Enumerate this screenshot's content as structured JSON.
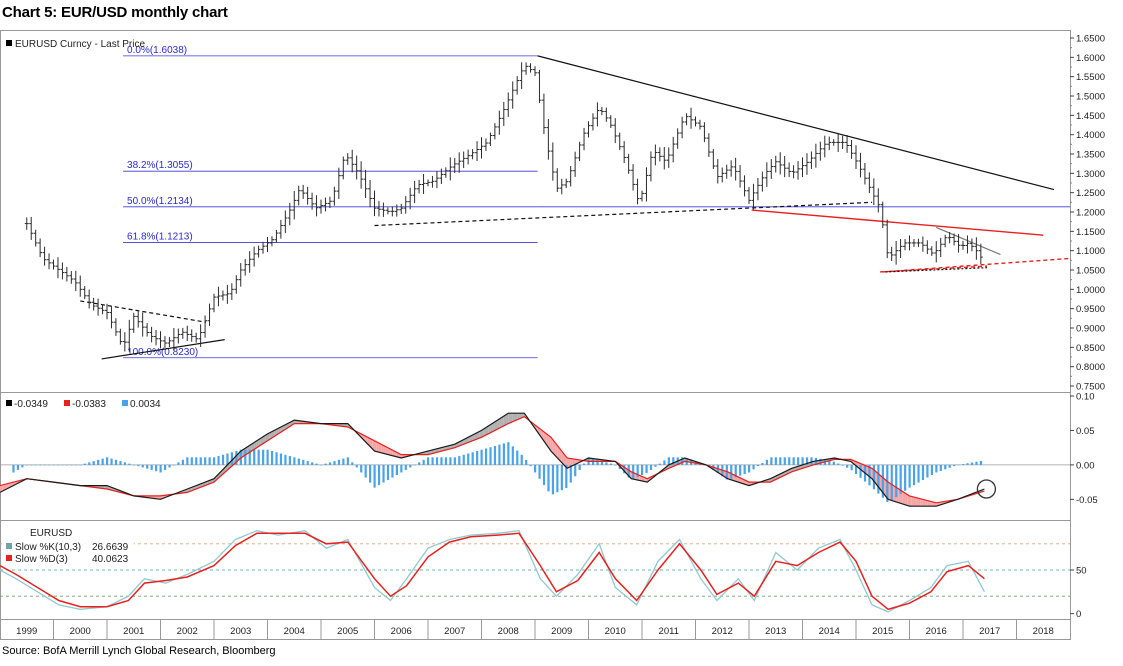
{
  "title": "Chart 5: EUR/USD monthly chart",
  "source": "Source: BofA Merrill Lynch Global Research, Bloomberg",
  "colors": {
    "price": "#2b2b2b",
    "fib": "#3a3ad6",
    "resistance": "#111111",
    "red_trend": "#e8201e",
    "macd_black": "#1a1a1a",
    "macd_red": "#e8201e",
    "macd_fill_pink": "#f4a6a6",
    "macd_fill_gray": "#b0b0b0",
    "histogram": "#4aa3e8",
    "stoch_k": "#8fc9cf",
    "stoch_d": "#e8201e",
    "level_orange": "#e8a070",
    "level_teal": "#6fb8b0",
    "level_green": "#6aa36a"
  },
  "chart_data": [
    {
      "type": "line",
      "panel": "price",
      "legend": "EURUSD Curncy - Last Price",
      "x_unit": "year",
      "xlim": [
        1998.5,
        2018.5
      ],
      "ylim": [
        0.75,
        1.65
      ],
      "y_ticks": [
        "0.7500",
        "0.8000",
        "0.8500",
        "0.9000",
        "0.9500",
        "1.0000",
        "1.0500",
        "1.1000",
        "1.1500",
        "1.2000",
        "1.2500",
        "1.3000",
        "1.3500",
        "1.4000",
        "1.4500",
        "1.5000",
        "1.5500",
        "1.6000",
        "1.6500"
      ],
      "series_points": [
        [
          1999.0,
          1.17
        ],
        [
          1999.3,
          1.08
        ],
        [
          1999.6,
          1.05
        ],
        [
          1999.9,
          1.02
        ],
        [
          2000.2,
          0.96
        ],
        [
          2000.5,
          0.94
        ],
        [
          2000.8,
          0.85
        ],
        [
          2001.0,
          0.93
        ],
        [
          2001.3,
          0.88
        ],
        [
          2001.6,
          0.86
        ],
        [
          2001.9,
          0.89
        ],
        [
          2002.2,
          0.87
        ],
        [
          2002.5,
          0.98
        ],
        [
          2002.8,
          0.99
        ],
        [
          2003.0,
          1.05
        ],
        [
          2003.3,
          1.1
        ],
        [
          2003.6,
          1.13
        ],
        [
          2003.9,
          1.2
        ],
        [
          2004.1,
          1.26
        ],
        [
          2004.4,
          1.21
        ],
        [
          2004.7,
          1.23
        ],
        [
          2004.95,
          1.35
        ],
        [
          2005.2,
          1.3
        ],
        [
          2005.5,
          1.21
        ],
        [
          2005.8,
          1.2
        ],
        [
          2006.0,
          1.21
        ],
        [
          2006.3,
          1.27
        ],
        [
          2006.6,
          1.28
        ],
        [
          2006.95,
          1.32
        ],
        [
          2007.3,
          1.35
        ],
        [
          2007.6,
          1.38
        ],
        [
          2007.9,
          1.46
        ],
        [
          2008.1,
          1.52
        ],
        [
          2008.3,
          1.58
        ],
        [
          2008.5,
          1.56
        ],
        [
          2008.7,
          1.39
        ],
        [
          2008.9,
          1.26
        ],
        [
          2009.1,
          1.28
        ],
        [
          2009.4,
          1.4
        ],
        [
          2009.7,
          1.47
        ],
        [
          2009.9,
          1.43
        ],
        [
          2010.2,
          1.33
        ],
        [
          2010.45,
          1.22
        ],
        [
          2010.7,
          1.36
        ],
        [
          2010.95,
          1.33
        ],
        [
          2011.3,
          1.45
        ],
        [
          2011.6,
          1.42
        ],
        [
          2011.9,
          1.29
        ],
        [
          2012.2,
          1.32
        ],
        [
          2012.5,
          1.23
        ],
        [
          2012.8,
          1.3
        ],
        [
          2013.0,
          1.33
        ],
        [
          2013.3,
          1.3
        ],
        [
          2013.6,
          1.33
        ],
        [
          2013.95,
          1.38
        ],
        [
          2014.3,
          1.38
        ],
        [
          2014.55,
          1.32
        ],
        [
          2014.8,
          1.25
        ],
        [
          2014.95,
          1.21
        ],
        [
          2015.1,
          1.08
        ],
        [
          2015.4,
          1.12
        ],
        [
          2015.7,
          1.12
        ],
        [
          2015.95,
          1.09
        ],
        [
          2016.2,
          1.14
        ],
        [
          2016.45,
          1.11
        ],
        [
          2016.6,
          1.12
        ],
        [
          2016.75,
          1.1
        ],
        [
          2016.9,
          1.07
        ]
      ],
      "annotations": {
        "fibonacci_levels": [
          {
            "label": "0.0%(1.6038)",
            "value": 1.6038
          },
          {
            "label": "38.2%(1.3055)",
            "value": 1.3055
          },
          {
            "label": "50.0%(1.2134)",
            "value": 1.2134
          },
          {
            "label": "61.8%(1.1213)",
            "value": 1.1213
          },
          {
            "label": "100.0%(0.8230)",
            "value": 0.823
          }
        ],
        "fib_x_range": [
          2000.8,
          2008.55
        ],
        "fib_extended_level": {
          "value": 1.2134,
          "x_range": [
            2008.55,
            2018.5
          ]
        },
        "trendlines": [
          {
            "style": "solid",
            "color": "black",
            "from": [
              2008.55,
              1.6038
            ],
            "to": [
              2018.2,
              1.258
            ]
          },
          {
            "style": "dashed",
            "color": "black",
            "from": [
              2005.5,
              1.165
            ],
            "to": [
              2014.8,
              1.225
            ]
          },
          {
            "style": "solid",
            "color": "red",
            "from": [
              2012.55,
              1.205
            ],
            "to": [
              2018.0,
              1.14
            ]
          },
          {
            "style": "dashed",
            "color": "red",
            "from": [
              2015.0,
              1.045
            ],
            "to": [
              2018.5,
              1.08
            ]
          },
          {
            "style": "solid",
            "color": "gray",
            "from": [
              2016.0,
              1.16
            ],
            "to": [
              2017.2,
              1.09
            ]
          },
          {
            "style": "dashed",
            "color": "black",
            "from": [
              2000.0,
              0.97
            ],
            "to": [
              2002.35,
              0.915
            ]
          },
          {
            "style": "solid",
            "color": "black",
            "from": [
              2000.4,
              0.82
            ],
            "to": [
              2002.7,
              0.87
            ]
          },
          {
            "style": "dashed",
            "color": "red",
            "from": [
              2014.95,
              1.045
            ],
            "to": [
              2016.95,
              1.06
            ]
          },
          {
            "style": "dotted",
            "color": "black",
            "from": [
              2015.05,
              1.045
            ],
            "to": [
              2016.95,
              1.056
            ]
          }
        ]
      }
    },
    {
      "type": "line",
      "panel": "macd",
      "legend": [
        {
          "value": "-0.0349",
          "color": "black"
        },
        {
          "value": "-0.0383",
          "color": "red"
        },
        {
          "value": "0.0034",
          "color": "blue"
        }
      ],
      "ylim": [
        -0.08,
        0.1
      ],
      "y_ticks": [
        "-0.05",
        "0.00",
        "0.05",
        "0.10"
      ],
      "macd_points": [
        [
          1998.5,
          -0.04
        ],
        [
          1999.0,
          -0.02
        ],
        [
          1999.5,
          -0.025
        ],
        [
          2000.0,
          -0.03
        ],
        [
          2000.5,
          -0.03
        ],
        [
          2001.0,
          -0.045
        ],
        [
          2001.5,
          -0.05
        ],
        [
          2002.0,
          -0.035
        ],
        [
          2002.5,
          -0.02
        ],
        [
          2003.0,
          0.02
        ],
        [
          2003.5,
          0.045
        ],
        [
          2004.0,
          0.065
        ],
        [
          2004.5,
          0.06
        ],
        [
          2005.0,
          0.06
        ],
        [
          2005.5,
          0.02
        ],
        [
          2006.0,
          0.01
        ],
        [
          2006.5,
          0.02
        ],
        [
          2007.0,
          0.03
        ],
        [
          2007.5,
          0.05
        ],
        [
          2008.0,
          0.075
        ],
        [
          2008.3,
          0.075
        ],
        [
          2008.8,
          0.02
        ],
        [
          2009.1,
          -0.005
        ],
        [
          2009.5,
          0.01
        ],
        [
          2010.0,
          0.005
        ],
        [
          2010.3,
          -0.02
        ],
        [
          2010.6,
          -0.025
        ],
        [
          2011.0,
          0.0
        ],
        [
          2011.3,
          0.01
        ],
        [
          2011.7,
          0.0
        ],
        [
          2012.1,
          -0.02
        ],
        [
          2012.5,
          -0.03
        ],
        [
          2012.9,
          -0.02
        ],
        [
          2013.3,
          -0.005
        ],
        [
          2013.7,
          0.005
        ],
        [
          2014.1,
          0.01
        ],
        [
          2014.4,
          0.005
        ],
        [
          2014.8,
          -0.02
        ],
        [
          2015.1,
          -0.05
        ],
        [
          2015.5,
          -0.06
        ],
        [
          2016.0,
          -0.06
        ],
        [
          2016.4,
          -0.05
        ],
        [
          2016.9,
          -0.035
        ]
      ],
      "signal_points": [
        [
          1998.5,
          -0.03
        ],
        [
          1999.0,
          -0.02
        ],
        [
          1999.5,
          -0.025
        ],
        [
          2000.0,
          -0.03
        ],
        [
          2000.5,
          -0.035
        ],
        [
          2001.0,
          -0.045
        ],
        [
          2001.5,
          -0.045
        ],
        [
          2002.0,
          -0.04
        ],
        [
          2002.5,
          -0.025
        ],
        [
          2003.0,
          0.01
        ],
        [
          2003.5,
          0.035
        ],
        [
          2004.0,
          0.06
        ],
        [
          2004.5,
          0.06
        ],
        [
          2005.0,
          0.055
        ],
        [
          2005.5,
          0.035
        ],
        [
          2006.0,
          0.015
        ],
        [
          2006.5,
          0.015
        ],
        [
          2007.0,
          0.025
        ],
        [
          2007.5,
          0.04
        ],
        [
          2008.0,
          0.06
        ],
        [
          2008.3,
          0.07
        ],
        [
          2008.8,
          0.04
        ],
        [
          2009.1,
          0.01
        ],
        [
          2009.5,
          0.005
        ],
        [
          2010.0,
          0.005
        ],
        [
          2010.3,
          -0.01
        ],
        [
          2010.6,
          -0.02
        ],
        [
          2011.0,
          -0.005
        ],
        [
          2011.3,
          0.005
        ],
        [
          2011.7,
          0.0
        ],
        [
          2012.1,
          -0.01
        ],
        [
          2012.5,
          -0.025
        ],
        [
          2012.9,
          -0.025
        ],
        [
          2013.3,
          -0.01
        ],
        [
          2013.7,
          0.0
        ],
        [
          2014.1,
          0.008
        ],
        [
          2014.4,
          0.008
        ],
        [
          2014.8,
          -0.005
        ],
        [
          2015.1,
          -0.025
        ],
        [
          2015.5,
          -0.045
        ],
        [
          2016.0,
          -0.055
        ],
        [
          2016.4,
          -0.05
        ],
        [
          2016.9,
          -0.038
        ]
      ]
    },
    {
      "type": "line",
      "panel": "stochastic",
      "legend_title": "EURUSD",
      "legend": [
        {
          "name": "Slow %K(10,3)",
          "value": "26.6639",
          "color": "teal"
        },
        {
          "name": "Slow %D(3)",
          "value": "40.0623",
          "color": "red"
        }
      ],
      "ylim": [
        -5,
        105
      ],
      "y_ticks": [
        "0",
        "50"
      ],
      "levels": [
        80,
        50,
        20
      ],
      "k_points": [
        [
          1998.5,
          50
        ],
        [
          1998.8,
          40
        ],
        [
          1999.2,
          25
        ],
        [
          1999.6,
          10
        ],
        [
          2000.0,
          5
        ],
        [
          2000.5,
          8
        ],
        [
          2000.9,
          20
        ],
        [
          2001.2,
          40
        ],
        [
          2001.6,
          35
        ],
        [
          2002.0,
          45
        ],
        [
          2002.5,
          60
        ],
        [
          2002.9,
          85
        ],
        [
          2003.3,
          95
        ],
        [
          2003.7,
          90
        ],
        [
          2004.2,
          95
        ],
        [
          2004.6,
          75
        ],
        [
          2005.0,
          85
        ],
        [
          2005.5,
          30
        ],
        [
          2005.8,
          15
        ],
        [
          2006.1,
          40
        ],
        [
          2006.5,
          75
        ],
        [
          2006.9,
          85
        ],
        [
          2007.3,
          90
        ],
        [
          2007.8,
          92
        ],
        [
          2008.2,
          95
        ],
        [
          2008.6,
          40
        ],
        [
          2008.9,
          20
        ],
        [
          2009.3,
          45
        ],
        [
          2009.7,
          80
        ],
        [
          2010.0,
          30
        ],
        [
          2010.4,
          10
        ],
        [
          2010.8,
          60
        ],
        [
          2011.2,
          85
        ],
        [
          2011.6,
          40
        ],
        [
          2011.9,
          15
        ],
        [
          2012.3,
          40
        ],
        [
          2012.6,
          15
        ],
        [
          2013.0,
          70
        ],
        [
          2013.4,
          50
        ],
        [
          2013.8,
          75
        ],
        [
          2014.2,
          85
        ],
        [
          2014.5,
          50
        ],
        [
          2014.8,
          10
        ],
        [
          2015.1,
          2
        ],
        [
          2015.5,
          15
        ],
        [
          2015.9,
          30
        ],
        [
          2016.2,
          55
        ],
        [
          2016.6,
          60
        ],
        [
          2016.9,
          25
        ]
      ],
      "d_points": [
        [
          1998.5,
          55
        ],
        [
          1998.8,
          45
        ],
        [
          1999.2,
          30
        ],
        [
          1999.6,
          15
        ],
        [
          2000.0,
          8
        ],
        [
          2000.5,
          8
        ],
        [
          2000.9,
          15
        ],
        [
          2001.2,
          35
        ],
        [
          2001.6,
          38
        ],
        [
          2002.0,
          42
        ],
        [
          2002.5,
          55
        ],
        [
          2002.9,
          78
        ],
        [
          2003.3,
          92
        ],
        [
          2003.7,
          92
        ],
        [
          2004.2,
          92
        ],
        [
          2004.6,
          80
        ],
        [
          2005.0,
          82
        ],
        [
          2005.5,
          40
        ],
        [
          2005.8,
          20
        ],
        [
          2006.1,
          32
        ],
        [
          2006.5,
          65
        ],
        [
          2006.9,
          82
        ],
        [
          2007.3,
          88
        ],
        [
          2007.8,
          90
        ],
        [
          2008.2,
          92
        ],
        [
          2008.6,
          55
        ],
        [
          2008.9,
          25
        ],
        [
          2009.3,
          38
        ],
        [
          2009.7,
          70
        ],
        [
          2010.0,
          40
        ],
        [
          2010.4,
          15
        ],
        [
          2010.8,
          50
        ],
        [
          2011.2,
          80
        ],
        [
          2011.6,
          50
        ],
        [
          2011.9,
          22
        ],
        [
          2012.3,
          35
        ],
        [
          2012.6,
          20
        ],
        [
          2013.0,
          60
        ],
        [
          2013.4,
          55
        ],
        [
          2013.8,
          70
        ],
        [
          2014.2,
          82
        ],
        [
          2014.5,
          60
        ],
        [
          2014.8,
          20
        ],
        [
          2015.1,
          5
        ],
        [
          2015.5,
          12
        ],
        [
          2015.9,
          25
        ],
        [
          2016.2,
          48
        ],
        [
          2016.6,
          55
        ],
        [
          2016.9,
          40
        ]
      ]
    }
  ],
  "x_axis_labels": [
    "1999",
    "2000",
    "2001",
    "2002",
    "2003",
    "2004",
    "2005",
    "2006",
    "2007",
    "2008",
    "2009",
    "2010",
    "2011",
    "2012",
    "2013",
    "2014",
    "2015",
    "2016",
    "2017",
    "2018"
  ]
}
